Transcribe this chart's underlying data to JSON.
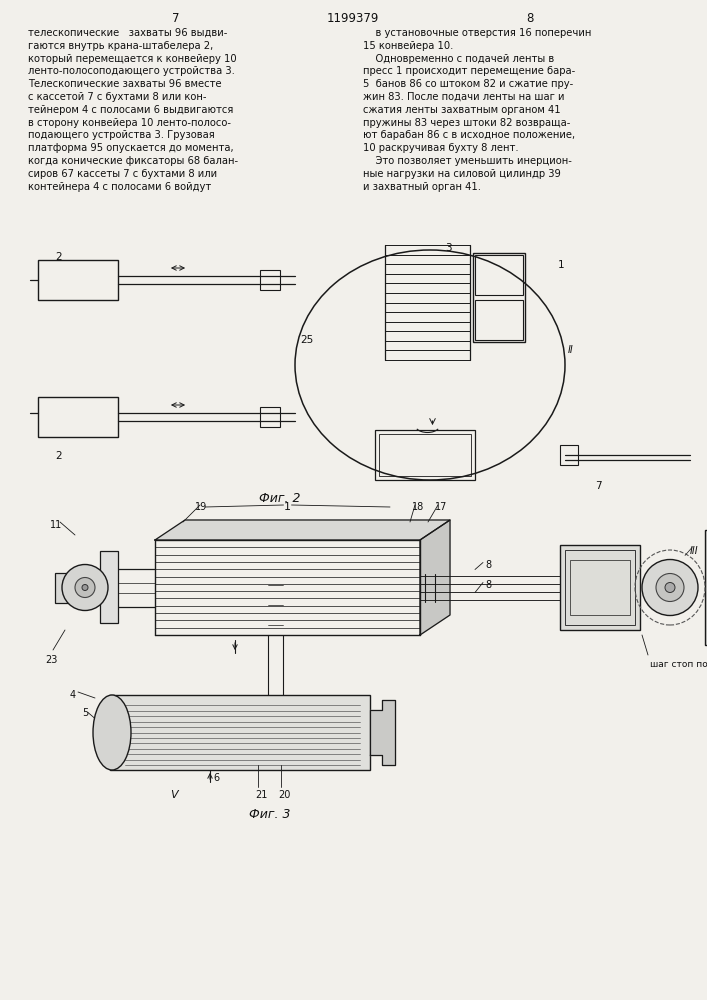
{
  "bg_color": "#f2f0eb",
  "page_header": {
    "left_num": "7",
    "center_patent": "1199379",
    "right_num": "8"
  },
  "left_text": [
    "телескопические   захваты 96 выдви-",
    "гаются внутрь крана-штабелера 2,",
    "который перемещается к конвейеру 10",
    "ленто-полосоподающего устройства 3.",
    "Телескопические захваты 96 вместе",
    "с кассетой 7 с бухтами 8 или кон-",
    "тейнером 4 с полосами 6 выдвигаются",
    "в сторону конвейера 10 ленто-полосо-",
    "подающего устройства 3. Грузовая",
    "платформа 95 опускается до момента,",
    "когда конические фиксаторы 68 балан-",
    "сиров 67 кассеты 7 с бухтами 8 или",
    "контейнера 4 с полосами 6 войдут"
  ],
  "right_text": [
    "    в установочные отверстия 16 поперечин",
    "15 конвейера 10.",
    "    Одновременно с подачей ленты в",
    "пресс 1 происходит перемещение бара-",
    "5  банов 86 со штоком 82 и сжатие пру-",
    "жин 83. После подачи ленты на шаг и",
    "сжатия ленты захватным органом 41",
    "пружины 83 через штоки 82 возвраща-",
    "ют барабан 86 с в исходное положение,",
    "10 раскручивая бухту 8 лент.",
    "    Это позволяет уменьшить инерцион-",
    "ные нагрузки на силовой цилиндр 39",
    "и захватный орган 41."
  ],
  "fig2_label": "Фиг. 2",
  "fig3_label": "Фиг. 3"
}
